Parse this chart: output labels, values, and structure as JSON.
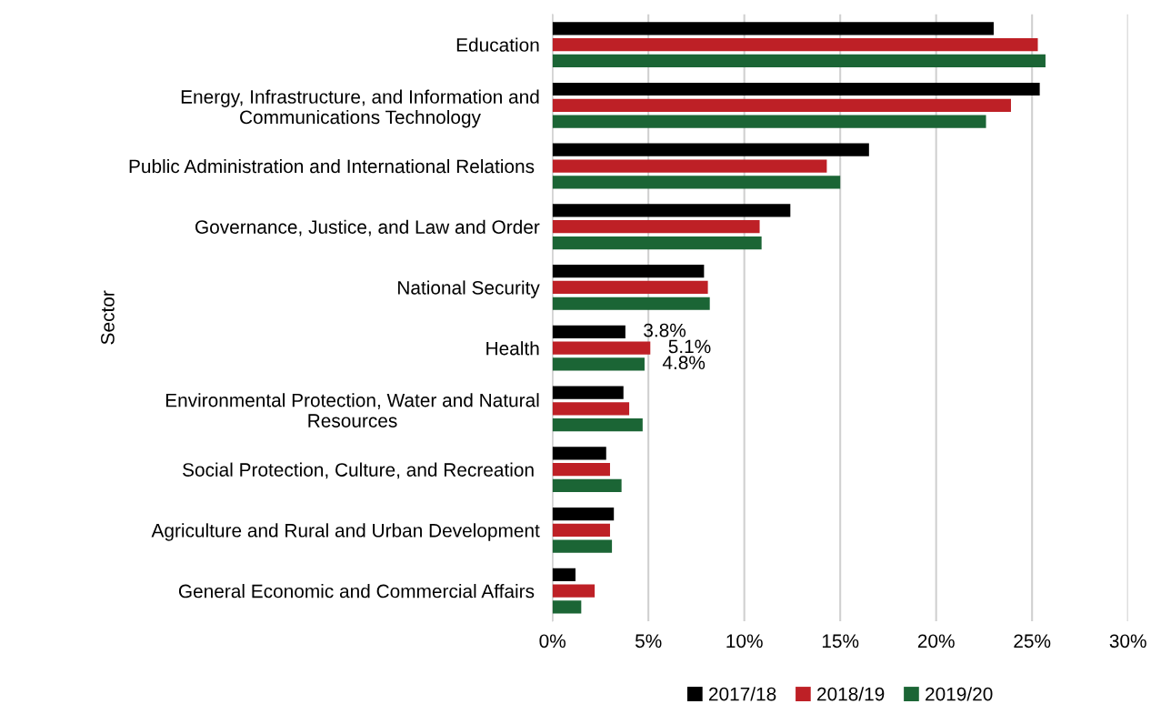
{
  "chart_data": {
    "type": "bar",
    "orientation": "horizontal",
    "ylabel": "Sector",
    "categories": [
      "Education",
      "Energy, Infrastructure, and Information and\nCommunications Technology",
      "Public Administration and International Relations ",
      "Governance, Justice, and Law and Order",
      "National Security",
      "Health",
      "Environmental Protection, Water and Natural\nResources",
      "Social Protection, Culture, and Recreation ",
      "Agriculture and Rural and Urban Development",
      "General Economic and Commercial Affairs "
    ],
    "series": [
      {
        "name": "2017/18",
        "color": "#000000",
        "values": [
          23.0,
          25.4,
          16.5,
          12.4,
          7.9,
          3.8,
          3.7,
          2.8,
          3.2,
          1.2
        ],
        "value_labels": [
          null,
          null,
          null,
          null,
          null,
          "3.8%",
          null,
          null,
          null,
          null
        ]
      },
      {
        "name": "2018/19",
        "color": "#be2026",
        "values": [
          25.3,
          23.9,
          14.3,
          10.8,
          8.1,
          5.1,
          4.0,
          3.0,
          3.0,
          2.2
        ],
        "value_labels": [
          null,
          null,
          null,
          null,
          null,
          "5.1%",
          null,
          null,
          null,
          null
        ]
      },
      {
        "name": "2019/20",
        "color": "#1b6535",
        "values": [
          25.7,
          22.6,
          15.0,
          10.9,
          8.2,
          4.8,
          4.7,
          3.6,
          3.1,
          1.5
        ],
        "value_labels": [
          null,
          null,
          null,
          null,
          null,
          "4.8%",
          null,
          null,
          null,
          null
        ]
      }
    ],
    "xlim": [
      0,
      30
    ],
    "xticks": [
      {
        "value": 0,
        "label": "0%"
      },
      {
        "value": 5,
        "label": "5%"
      },
      {
        "value": 10,
        "label": "10%"
      },
      {
        "value": 15,
        "label": "15%"
      },
      {
        "value": 20,
        "label": "20%"
      },
      {
        "value": 25,
        "label": "25%"
      },
      {
        "value": 30,
        "label": "30%"
      }
    ],
    "grid": "x",
    "legend": "bottom"
  }
}
